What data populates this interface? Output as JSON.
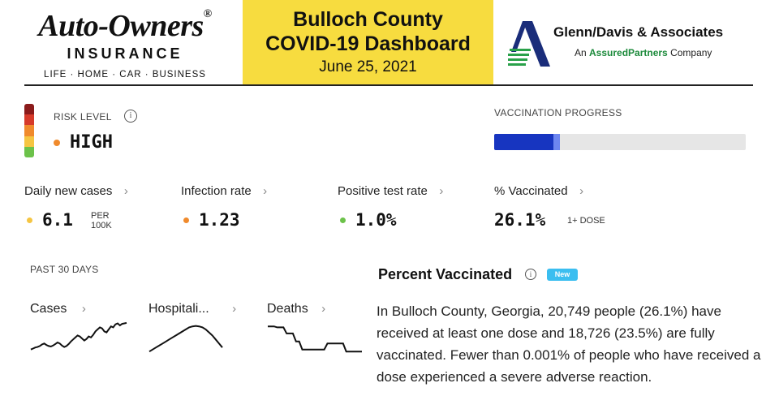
{
  "header": {
    "left_logo": {
      "name": "Auto-Owners",
      "reg_mark": "®",
      "subtitle": "INSURANCE",
      "tagline": "LIFE · HOME · CAR · BUSINESS"
    },
    "title": {
      "line1": "Bulloch County",
      "line2": "COVID-19 Dashboard",
      "date": "June 25, 2021"
    },
    "right_logo": {
      "name": "Glenn/Davis & Associates",
      "sub_prefix": "An ",
      "sub_accent": "AssuredPartners",
      "sub_suffix": " Company"
    }
  },
  "risk": {
    "label": "RISK LEVEL",
    "info_icon": "info-icon",
    "value": "HIGH",
    "dot_color": "#f08a2c",
    "scale_colors": [
      "#8b1b1b",
      "#d63a2a",
      "#f08a2c",
      "#f5c542",
      "#6cc24a"
    ]
  },
  "vaccination_progress": {
    "label": "VACCINATION PROGRESS",
    "fully_vaccinated_fraction": 0.235,
    "at_least_one_dose_fraction": 0.261,
    "full_color": "#1735c0",
    "partial_color": "#6d86f0"
  },
  "metrics": [
    {
      "label": "Daily new cases",
      "value": "6.1",
      "unit_line1": "PER",
      "unit_line2": "100K",
      "dot_color": "#f5c542"
    },
    {
      "label": "Infection rate",
      "value": "1.23",
      "dot_color": "#f08a2c"
    },
    {
      "label": "Positive test rate",
      "value": "1.0%",
      "dot_color": "#6cc24a"
    },
    {
      "label": "% Vaccinated",
      "value": "26.1%",
      "unit_line1": "1+ DOSE"
    }
  ],
  "chevron": "›",
  "past30": {
    "label": "PAST 30 DAYS",
    "charts": [
      {
        "label": "Cases",
        "values": [
          44,
          46,
          48,
          49,
          51,
          54,
          56,
          53,
          51,
          50,
          52,
          55,
          58,
          56,
          52,
          49,
          51,
          55,
          60,
          64,
          68,
          72,
          70,
          66,
          62,
          65,
          70,
          68,
          73,
          80,
          84,
          88,
          86,
          80,
          78,
          84,
          90,
          88,
          94,
          96,
          92,
          95,
          96,
          97
        ]
      },
      {
        "label": "Hospitali...",
        "values": [
          40,
          44,
          48,
          52,
          56,
          60,
          64,
          68,
          72,
          76,
          80,
          84,
          88,
          90,
          91,
          90,
          88,
          84,
          78,
          72,
          64,
          56,
          48
        ]
      },
      {
        "label": "Deaths",
        "values": [
          90,
          90,
          90,
          88,
          88,
          88,
          76,
          76,
          76,
          60,
          60,
          44,
          44,
          44,
          44,
          44,
          44,
          44,
          44,
          56,
          56,
          56,
          56,
          56,
          56,
          40,
          40,
          40,
          40,
          40,
          40
        ]
      }
    ]
  },
  "percent_vaccinated": {
    "title": "Percent Vaccinated",
    "badge": "New",
    "body": "In Bulloch County, Georgia, 20,749 people (26.1%) have received at least one dose and 18,726 (23.5%) are fully vaccinated. Fewer than 0.001% of people who have received a dose experienced a severe adverse reaction."
  }
}
